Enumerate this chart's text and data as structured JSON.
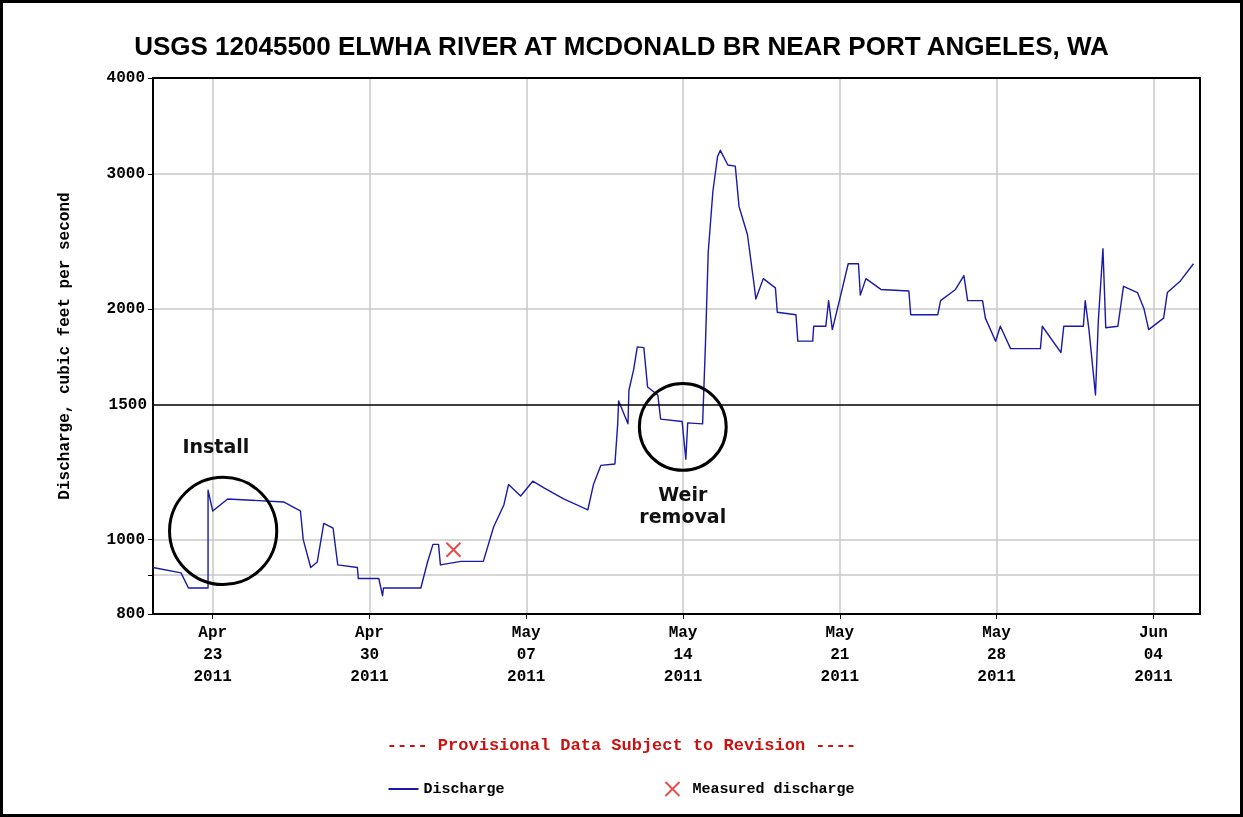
{
  "chart_data": {
    "type": "line",
    "title": "USGS 12045500 ELWHA RIVER AT MCDONALD BR NEAR PORT ANGELES, WA",
    "ylabel": "Discharge, cubic feet per second",
    "log": "y",
    "grid": true,
    "legend": "bottom",
    "marker": "none",
    "line_style": "solid",
    "xlim": [
      "2011-04-20T08:00",
      "2011-06-06T02:00"
    ],
    "xticks": [
      {
        "value": "2011-04-23",
        "label": "Apr\n23\n2011"
      },
      {
        "value": "2011-04-30",
        "label": "Apr\n30\n2011"
      },
      {
        "value": "2011-05-07",
        "label": "May\n07\n2011"
      },
      {
        "value": "2011-05-14",
        "label": "May\n14\n2011"
      },
      {
        "value": "2011-05-21",
        "label": "May\n21\n2011"
      },
      {
        "value": "2011-05-28",
        "label": "May\n28\n2011"
      },
      {
        "value": "2011-06-04",
        "label": "Jun\n04\n2011"
      }
    ],
    "ylim": [
      800,
      4000
    ],
    "yticks": [
      800,
      {
        "value": 900,
        "label": null
      },
      1000,
      2000,
      3000,
      4000
    ],
    "ref_lines": [
      {
        "axis": "y",
        "value": 1500,
        "label": "1500",
        "color": "#000000",
        "line_style": "solid"
      }
    ],
    "annotations": [
      "Install",
      "Weir removal",
      "---- Provisional Data Subject to Revision ----"
    ],
    "series": [
      {
        "name": "Discharge",
        "color": "#1a1aa6",
        "x": [
          "2011-04-20T08:00",
          "2011-04-21T14:00",
          "2011-04-21T22:00",
          "2011-04-22T19:00",
          "2011-04-22T19:00",
          "2011-04-23T00:00",
          "2011-04-23T16:00",
          "2011-04-26T04:00",
          "2011-04-26T22:00",
          "2011-04-27T01:00",
          "2011-04-27T09:00",
          "2011-04-27T16:00",
          "2011-04-27T23:00",
          "2011-04-28T09:00",
          "2011-04-28T14:00",
          "2011-04-29T11:00",
          "2011-04-29T12:00",
          "2011-04-30T10:00",
          "2011-04-30T14:00",
          "2011-04-30T15:00",
          "2011-05-02T07:00",
          "2011-05-02T14:00",
          "2011-05-02T20:00",
          "2011-05-03T02:00",
          "2011-05-03T04:00",
          "2011-05-04T02:00",
          "2011-05-05T02:00",
          "2011-05-05T13:00",
          "2011-05-06T00:00",
          "2011-05-06T05:00",
          "2011-05-06T18:00",
          "2011-05-07T07:00",
          "2011-05-07T19:00",
          "2011-05-08T16:00",
          "2011-05-09T18:00",
          "2011-05-10T00:00",
          "2011-05-10T08:00",
          "2011-05-10T23:00",
          "2011-05-11T02:00",
          "2011-05-11T03:00",
          "2011-05-11T13:00",
          "2011-05-11T14:00",
          "2011-05-11T19:00",
          "2011-05-11T23:00",
          "2011-05-12T06:00",
          "2011-05-12T10:00",
          "2011-05-12T21:00",
          "2011-05-13T00:00",
          "2011-05-13T23:00",
          "2011-05-14T03:00",
          "2011-05-14T05:00",
          "2011-05-14T21:00",
          "2011-05-15T00:00",
          "2011-05-15T03:00",
          "2011-05-15T08:00",
          "2011-05-15T13:00",
          "2011-05-15T16:00",
          "2011-05-16T00:00",
          "2011-05-16T08:00",
          "2011-05-16T12:00",
          "2011-05-16T21:00",
          "2011-05-17T04:00",
          "2011-05-17T06:00",
          "2011-05-17T14:00",
          "2011-05-18T03:00",
          "2011-05-18T05:00",
          "2011-05-19T01:00",
          "2011-05-19T03:00",
          "2011-05-19T19:00",
          "2011-05-19T20:00",
          "2011-05-20T09:00",
          "2011-05-20T12:00",
          "2011-05-20T16:00",
          "2011-05-21T01:00",
          "2011-05-21T09:00",
          "2011-05-21T20:00",
          "2011-05-21T22:00",
          "2011-05-22T04:00",
          "2011-05-22T20:00",
          "2011-05-24T02:00",
          "2011-05-24T04:00",
          "2011-05-25T09:00",
          "2011-05-25T12:00",
          "2011-05-26T04:00",
          "2011-05-26T13:00",
          "2011-05-26T17:00",
          "2011-05-27T09:00",
          "2011-05-27T12:00",
          "2011-05-27T23:00",
          "2011-05-28T04:00",
          "2011-05-28T15:00",
          "2011-05-29T23:00",
          "2011-05-30T01:00",
          "2011-05-30T21:00",
          "2011-05-31T00:00",
          "2011-05-31T21:00",
          "2011-05-31T23:00",
          "2011-06-01T03:00",
          "2011-06-01T10:00",
          "2011-06-01T13:00",
          "2011-06-01T18:00",
          "2011-06-01T21:00",
          "2011-06-02T10:00",
          "2011-06-02T16:00",
          "2011-06-03T07:00",
          "2011-06-03T14:00",
          "2011-06-03T19:00",
          "2011-06-04T11:00",
          "2011-06-04T15:00",
          "2011-06-05T05:00",
          "2011-06-05T19:00"
        ],
        "values": [
          920,
          905,
          865,
          865,
          1160,
          1090,
          1130,
          1120,
          1090,
          1000,
          920,
          935,
          1050,
          1035,
          927,
          920,
          890,
          890,
          845,
          865,
          865,
          933,
          986,
          986,
          927,
          937,
          937,
          1039,
          1110,
          1180,
          1140,
          1192,
          1168,
          1130,
          1094,
          1180,
          1250,
          1255,
          1416,
          1517,
          1416,
          1565,
          1665,
          1784,
          1780,
          1582,
          1544,
          1436,
          1426,
          1273,
          1420,
          1416,
          1795,
          2370,
          2847,
          3160,
          3219,
          3080,
          3070,
          2720,
          2500,
          2158,
          2060,
          2190,
          2130,
          1980,
          1965,
          1815,
          1815,
          1898,
          1898,
          2050,
          1879,
          2084,
          2290,
          2290,
          2084,
          2190,
          2120,
          2110,
          1965,
          1965,
          2050,
          2120,
          2210,
          2050,
          2050,
          1945,
          1815,
          1898,
          1775,
          1775,
          1898,
          1754,
          1898,
          1898,
          2050,
          1879,
          1544,
          1925,
          2395,
          1890,
          1898,
          2140,
          2100,
          2000,
          1879,
          1945,
          2100,
          2175,
          2290
        ]
      },
      {
        "name": "Measured discharge",
        "type": "scatter",
        "marker": "cross",
        "color": "#e02020",
        "x": [
          "2011-05-03T18:00"
        ],
        "values": [
          970
        ]
      }
    ]
  }
}
